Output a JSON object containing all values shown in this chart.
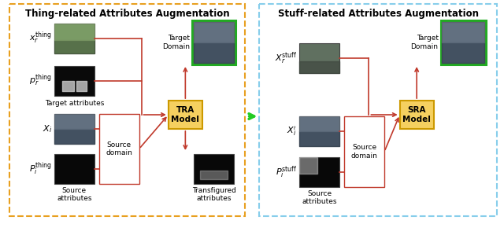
{
  "title_left": "Thing-related Attributes Augmentation",
  "title_right": "Stuff-related Attributes Augmentation",
  "left_box_label": "TRA\nModel",
  "right_box_label": "SRA\nModel",
  "left_border_color": "#E8A020",
  "right_border_color": "#87CEEB",
  "arrow_color": "#C0392B",
  "green_arrow_color": "#22CC22",
  "target_border_color": "#22AA22",
  "bg_color": "#FFFFFF",
  "left_labels": [
    "$x_r^{\\mathrm{thing}}$",
    "$p_r^{\\mathrm{thing}}$",
    "$X_i$",
    "$P_i^{\\mathrm{thing}}$"
  ],
  "right_labels": [
    "$X_r^{\\mathrm{stuff}}$",
    "$X_i^{\\prime}$",
    "$P_i^{\\mathrm{stuff}}$"
  ],
  "font_size_title": 8.5,
  "font_size_label": 6.5,
  "font_size_model": 7.5
}
